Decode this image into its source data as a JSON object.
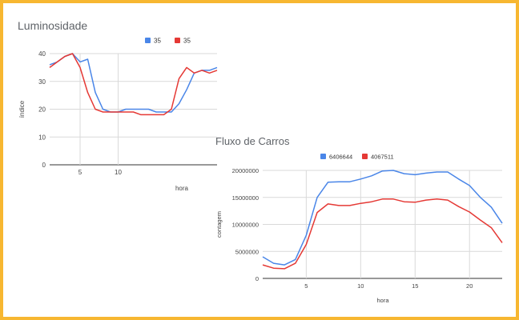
{
  "chart_data": [
    {
      "type": "line",
      "title": "Luminosidade",
      "xlabel": "hora",
      "ylabel": "índice",
      "x": [
        1,
        2,
        3,
        4,
        5,
        6,
        7,
        8,
        9,
        10,
        11,
        12,
        13,
        14,
        15,
        16,
        17,
        18,
        19,
        20,
        21,
        22,
        23
      ],
      "xticks": [
        5,
        10
      ],
      "yticks": [
        0,
        10,
        20,
        30,
        40
      ],
      "ylim": [
        0,
        40
      ],
      "legend_position": "top",
      "series": [
        {
          "name": "35",
          "color": "#4a86e8",
          "values": [
            36,
            37,
            39,
            40,
            37,
            38,
            26,
            20,
            19,
            19,
            20,
            20,
            20,
            20,
            19,
            19,
            19,
            22,
            27,
            33,
            34,
            34,
            35
          ]
        },
        {
          "name": "35",
          "color": "#e53935",
          "values": [
            35,
            37,
            39,
            40,
            35,
            26,
            20,
            19,
            19,
            19,
            19,
            19,
            18,
            18,
            18,
            18,
            20,
            31,
            35,
            33,
            34,
            33,
            34
          ]
        }
      ]
    },
    {
      "type": "line",
      "title": "Fluxo de Carros",
      "xlabel": "hora",
      "ylabel": "contagem",
      "x": [
        1,
        2,
        3,
        4,
        5,
        6,
        7,
        8,
        9,
        10,
        11,
        12,
        13,
        14,
        15,
        16,
        17,
        18,
        19,
        20,
        21,
        22,
        23
      ],
      "xticks": [
        5,
        10,
        15,
        20
      ],
      "yticks": [
        0,
        5000000,
        10000000,
        15000000,
        20000000
      ],
      "ylim": [
        0,
        20000000
      ],
      "legend_position": "top",
      "series": [
        {
          "name": "6406644",
          "color": "#4a86e8",
          "values": [
            4000000,
            2800000,
            2500000,
            3500000,
            8000000,
            15000000,
            17800000,
            17900000,
            17900000,
            18400000,
            19000000,
            19900000,
            20000000,
            19400000,
            19200000,
            19500000,
            19700000,
            19700000,
            18400000,
            17200000,
            15000000,
            13200000,
            10200000
          ]
        },
        {
          "name": "4067511",
          "color": "#e53935",
          "values": [
            2500000,
            1900000,
            1800000,
            2800000,
            6300000,
            12200000,
            13800000,
            13500000,
            13500000,
            13900000,
            14200000,
            14700000,
            14700000,
            14200000,
            14100000,
            14500000,
            14700000,
            14500000,
            13300000,
            12300000,
            10800000,
            9400000,
            6600000
          ]
        }
      ]
    }
  ]
}
